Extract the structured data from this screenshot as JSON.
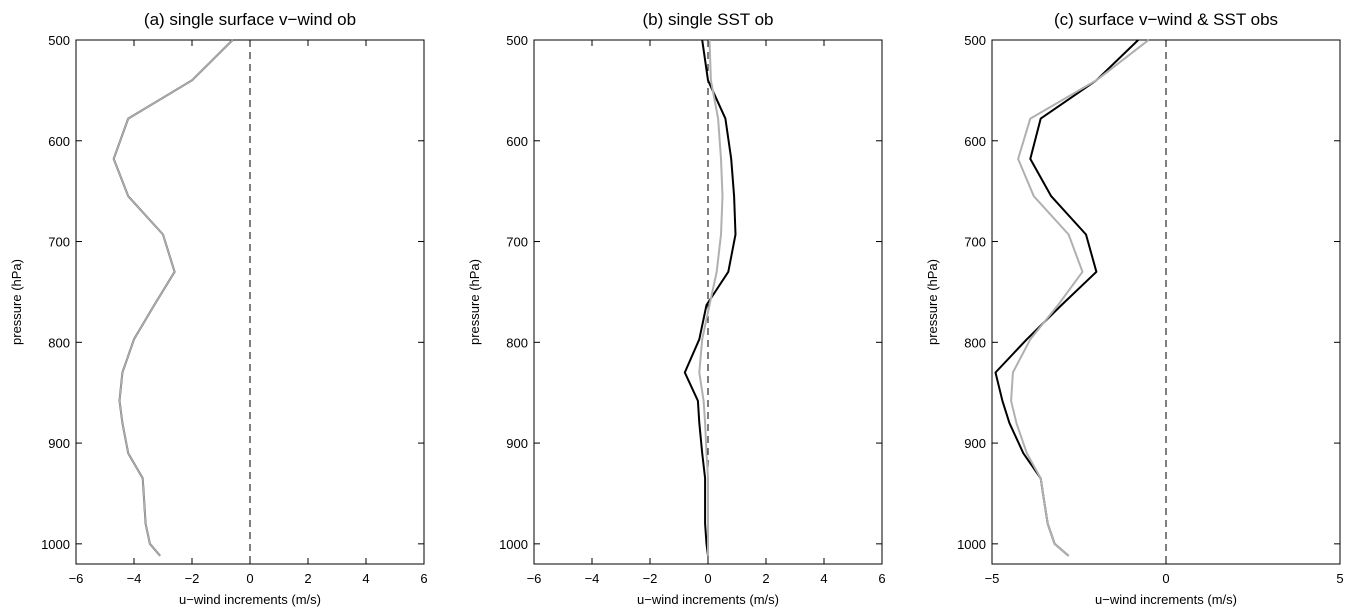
{
  "chart_data": [
    {
      "type": "line",
      "title": "(a) single surface v−wind ob",
      "xlabel": "u−wind increments (m/s)",
      "ylabel": "pressure (hPa)",
      "xlim": [
        -6,
        6
      ],
      "ylim": [
        500,
        1020
      ],
      "y_reversed": true,
      "xticks": [
        -6,
        -4,
        -2,
        0,
        2,
        4,
        6
      ],
      "xtick_labels": [
        "−6",
        "−4",
        "−2",
        "0",
        "2",
        "4",
        "6"
      ],
      "yticks": [
        500,
        600,
        700,
        800,
        900,
        1000
      ],
      "ytick_labels": [
        "500",
        "600",
        "700",
        "800",
        "900",
        "1000"
      ],
      "zero_line": "dashed",
      "grid": false,
      "series": [
        {
          "color": "#555555",
          "pressure": [
            500,
            540,
            578,
            618,
            655,
            693,
            730,
            763,
            797,
            830,
            858,
            880,
            910,
            935,
            958,
            980,
            1000,
            1012
          ],
          "values": [
            -0.6,
            -2.0,
            -4.2,
            -4.7,
            -4.2,
            -3.0,
            -2.6,
            -3.3,
            -4.0,
            -4.4,
            -4.5,
            -4.4,
            -4.2,
            -3.7,
            -3.65,
            -3.6,
            -3.45,
            -3.1
          ]
        },
        {
          "color": "#b0b0b0",
          "pressure": [
            500,
            540,
            578,
            618,
            655,
            693,
            730,
            763,
            797,
            830,
            858,
            880,
            910,
            935,
            958,
            980,
            1000,
            1012
          ],
          "values": [
            -0.6,
            -2.0,
            -4.2,
            -4.7,
            -4.2,
            -3.0,
            -2.6,
            -3.3,
            -4.0,
            -4.4,
            -4.5,
            -4.4,
            -4.2,
            -3.7,
            -3.65,
            -3.6,
            -3.45,
            -3.1
          ]
        }
      ]
    },
    {
      "type": "line",
      "title": "(b) single SST ob",
      "xlabel": "u−wind increments (m/s)",
      "ylabel": "pressure (hPa)",
      "xlim": [
        -6,
        6
      ],
      "ylim": [
        500,
        1020
      ],
      "y_reversed": true,
      "xticks": [
        -6,
        -4,
        -2,
        0,
        2,
        4,
        6
      ],
      "xtick_labels": [
        "−6",
        "−4",
        "−2",
        "0",
        "2",
        "4",
        "6"
      ],
      "yticks": [
        500,
        600,
        700,
        800,
        900,
        1000
      ],
      "ytick_labels": [
        "500",
        "600",
        "700",
        "800",
        "900",
        "1000"
      ],
      "zero_line": "dashed",
      "grid": false,
      "series": [
        {
          "color": "#000000",
          "pressure": [
            500,
            540,
            578,
            618,
            655,
            693,
            730,
            763,
            797,
            830,
            858,
            880,
            910,
            935,
            958,
            980,
            1000,
            1012
          ],
          "values": [
            -0.2,
            0.0,
            0.6,
            0.8,
            0.9,
            0.95,
            0.7,
            -0.05,
            -0.3,
            -0.8,
            -0.35,
            -0.3,
            -0.2,
            -0.1,
            -0.1,
            -0.1,
            -0.05,
            0.0
          ]
        },
        {
          "color": "#b0b0b0",
          "pressure": [
            500,
            540,
            578,
            618,
            655,
            693,
            730,
            763,
            797,
            830,
            858,
            880,
            910,
            935,
            958,
            980,
            1000,
            1012
          ],
          "values": [
            0.05,
            0.1,
            0.35,
            0.45,
            0.5,
            0.45,
            0.3,
            0.05,
            -0.2,
            -0.3,
            -0.15,
            -0.1,
            -0.05,
            0.0,
            0.0,
            0.0,
            0.0,
            0.0
          ]
        }
      ]
    },
    {
      "type": "line",
      "title": "(c) surface v−wind & SST obs",
      "xlabel": "u−wind increments (m/s)",
      "ylabel": "pressure (hPa)",
      "xlim": [
        -5,
        5
      ],
      "ylim": [
        500,
        1020
      ],
      "y_reversed": true,
      "xticks": [
        -5,
        0,
        5
      ],
      "xtick_labels": [
        "−5",
        "0",
        "5"
      ],
      "yticks": [
        500,
        600,
        700,
        800,
        900,
        1000
      ],
      "ytick_labels": [
        "500",
        "600",
        "700",
        "800",
        "900",
        "1000"
      ],
      "zero_line": "dashed",
      "grid": false,
      "series": [
        {
          "color": "#000000",
          "pressure": [
            500,
            540,
            578,
            618,
            655,
            693,
            730,
            763,
            797,
            830,
            858,
            880,
            910,
            935,
            958,
            980,
            1000,
            1012
          ],
          "values": [
            -0.8,
            -2.0,
            -3.6,
            -3.9,
            -3.3,
            -2.3,
            -2.0,
            -3.0,
            -4.0,
            -4.9,
            -4.7,
            -4.5,
            -4.1,
            -3.6,
            -3.5,
            -3.4,
            -3.2,
            -2.8
          ]
        },
        {
          "color": "#b0b0b0",
          "pressure": [
            500,
            540,
            578,
            618,
            655,
            693,
            730,
            763,
            797,
            830,
            858,
            880,
            910,
            935,
            958,
            980,
            1000,
            1012
          ],
          "values": [
            -0.5,
            -2.0,
            -3.9,
            -4.25,
            -3.8,
            -2.8,
            -2.4,
            -3.1,
            -3.9,
            -4.4,
            -4.45,
            -4.3,
            -4.0,
            -3.6,
            -3.5,
            -3.4,
            -3.2,
            -2.8
          ]
        }
      ]
    }
  ]
}
